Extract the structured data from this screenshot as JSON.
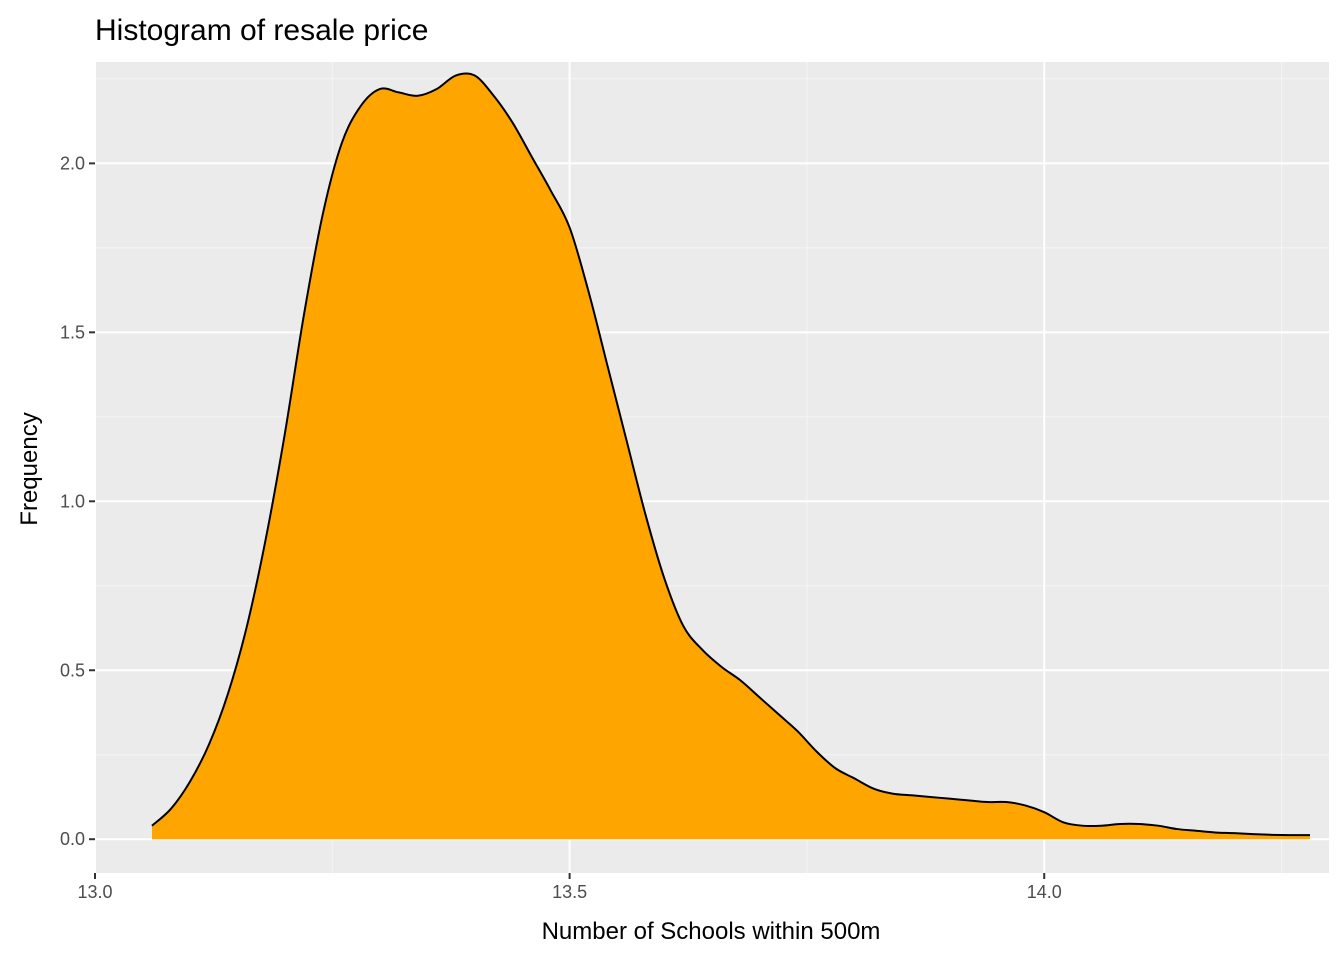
{
  "chart_data": {
    "type": "area",
    "title": "Histogram of resale price",
    "xlabel": "Number of Schools within 500m",
    "ylabel": "Frequency",
    "xlim": [
      13.0,
      14.3
    ],
    "ylim": [
      -0.1,
      2.3
    ],
    "x_ticks": [
      {
        "value": 13.0,
        "label": "13.0"
      },
      {
        "value": 13.5,
        "label": "13.5"
      },
      {
        "value": 14.0,
        "label": "14.0"
      }
    ],
    "y_ticks": [
      {
        "value": 0.0,
        "label": "0.0"
      },
      {
        "value": 0.5,
        "label": "0.5"
      },
      {
        "value": 1.0,
        "label": "1.0"
      },
      {
        "value": 1.5,
        "label": "1.5"
      },
      {
        "value": 2.0,
        "label": "2.0"
      }
    ],
    "grid": true,
    "series": [
      {
        "fill_color": "#FFA500",
        "line_color": "#000000",
        "x": [
          13.06,
          13.08,
          13.1,
          13.12,
          13.14,
          13.16,
          13.18,
          13.2,
          13.22,
          13.24,
          13.26,
          13.28,
          13.3,
          13.32,
          13.34,
          13.36,
          13.38,
          13.4,
          13.42,
          13.44,
          13.46,
          13.48,
          13.5,
          13.52,
          13.54,
          13.56,
          13.58,
          13.6,
          13.62,
          13.64,
          13.66,
          13.68,
          13.7,
          13.72,
          13.74,
          13.76,
          13.78,
          13.8,
          13.82,
          13.84,
          13.86,
          13.88,
          13.9,
          13.92,
          13.94,
          13.96,
          13.98,
          14.0,
          14.02,
          14.04,
          14.06,
          14.08,
          14.1,
          14.12,
          14.14,
          14.16,
          14.18,
          14.2,
          14.22,
          14.24,
          14.26,
          14.28
        ],
        "y": [
          0.04,
          0.09,
          0.17,
          0.28,
          0.43,
          0.63,
          0.89,
          1.2,
          1.55,
          1.85,
          2.06,
          2.17,
          2.22,
          2.21,
          2.2,
          2.22,
          2.26,
          2.26,
          2.2,
          2.12,
          2.02,
          1.92,
          1.81,
          1.62,
          1.4,
          1.18,
          0.96,
          0.77,
          0.63,
          0.56,
          0.51,
          0.47,
          0.42,
          0.37,
          0.32,
          0.26,
          0.21,
          0.18,
          0.15,
          0.135,
          0.13,
          0.125,
          0.12,
          0.115,
          0.11,
          0.11,
          0.1,
          0.08,
          0.05,
          0.04,
          0.04,
          0.045,
          0.045,
          0.04,
          0.03,
          0.025,
          0.02,
          0.018,
          0.015,
          0.013,
          0.012,
          0.012
        ]
      }
    ],
    "colors": {
      "panel_background": "#EBEBEB",
      "grid_major": "#FFFFFF",
      "grid_minor": "#F5F5F5",
      "tick_text": "#4D4D4D",
      "tick_mark": "#333333"
    }
  }
}
